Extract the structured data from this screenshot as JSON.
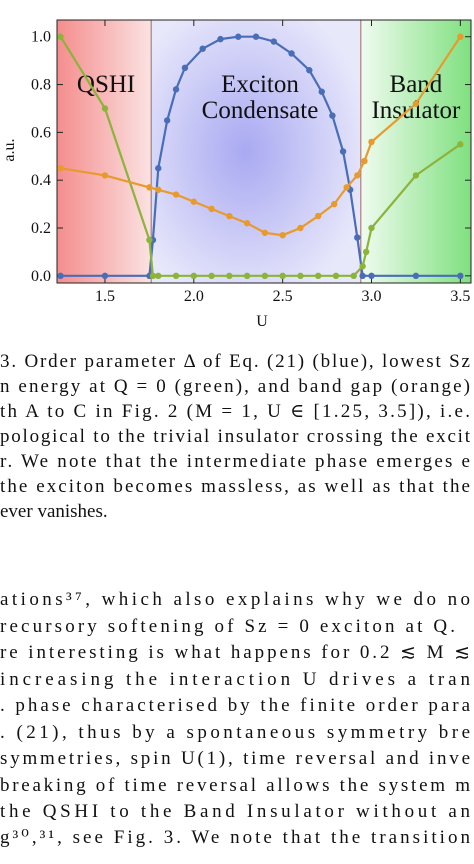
{
  "chart_data": {
    "type": "line",
    "x_label": "U",
    "y_label": "a.u.",
    "xlim": [
      1.23,
      3.56
    ],
    "ylim": [
      -0.03,
      1.07
    ],
    "xticks": [
      1.5,
      {
        "value": 2,
        "label": "2.0"
      },
      2.5,
      {
        "value": 3,
        "label": "3.0"
      },
      3.5
    ],
    "yticks": [
      {
        "value": 0,
        "label": "0.0"
      },
      0.2,
      0.4,
      0.6,
      0.8,
      {
        "value": 1,
        "label": "1.0"
      }
    ],
    "phase_boundaries": [
      1.76,
      2.94
    ],
    "regions": [
      {
        "label": [
          "QSHI"
        ]
      },
      {
        "label": [
          "Exciton",
          "Condensate"
        ]
      },
      {
        "label": [
          "Band",
          "Insulator"
        ]
      }
    ],
    "series": [
      {
        "color": "#4a6db8",
        "x": [
          1.25,
          1.5,
          1.75,
          1.77,
          1.8,
          1.85,
          1.9,
          1.95,
          2.05,
          2.15,
          2.25,
          2.35,
          2.45,
          2.55,
          2.65,
          2.72,
          2.78,
          2.84,
          2.88,
          2.92,
          2.95,
          3.0,
          3.25,
          3.5
        ],
        "values": [
          0,
          0,
          0,
          0.15,
          0.45,
          0.65,
          0.78,
          0.87,
          0.95,
          0.99,
          1.0,
          1.0,
          0.98,
          0.93,
          0.86,
          0.77,
          0.67,
          0.52,
          0.36,
          0.16,
          0,
          0,
          0,
          0
        ]
      },
      {
        "color": "#8cb33a",
        "x": [
          1.25,
          1.5,
          1.75,
          1.77,
          1.8,
          1.9,
          2.0,
          2.1,
          2.2,
          2.3,
          2.4,
          2.5,
          2.6,
          2.7,
          2.8,
          2.9,
          2.95,
          2.97,
          3.0,
          3.25,
          3.5
        ],
        "values": [
          1.0,
          0.7,
          0.15,
          0,
          0,
          0,
          0,
          0,
          0,
          0,
          0,
          0,
          0,
          0,
          0,
          0,
          0.04,
          0.1,
          0.2,
          0.42,
          0.55
        ]
      },
      {
        "color": "#e89a2c",
        "x": [
          1.25,
          1.5,
          1.75,
          1.8,
          1.9,
          2.0,
          2.1,
          2.2,
          2.3,
          2.4,
          2.5,
          2.6,
          2.7,
          2.79,
          2.86,
          2.92,
          2.96,
          3.0,
          3.25,
          3.5
        ],
        "values": [
          0.45,
          0.42,
          0.37,
          0.36,
          0.34,
          0.31,
          0.28,
          0.25,
          0.22,
          0.18,
          0.17,
          0.2,
          0.25,
          0.3,
          0.37,
          0.42,
          0.48,
          0.56,
          0.72,
          1.0
        ]
      }
    ]
  },
  "caption": {
    "lines": [
      "3. Order parameter Δ of Eq. (21) (blue), lowest Sz",
      "n energy at Q = 0 (green), and band gap (orange)",
      "th A to C in Fig. 2 (M = 1, U ∈ [1.25, 3.5]), i.e.",
      "pological to the trivial insulator crossing the excit",
      "r. We note that the intermediate phase emerges e",
      "the exciton becomes massless, as well as that the",
      "ever vanishes."
    ]
  },
  "body": {
    "lines": [
      "ations³⁷, which also explains why we do no",
      "recursory softening of Sz = 0 exciton at Q.",
      "re interesting is what happens for 0.2 ≲ M ≲",
      " increasing the interaction U drives a tran",
      ". phase characterised by the finite order para",
      ". (21), thus by a spontaneous symmetry bre",
      "symmetries, spin U(1), time reversal and inve",
      "breaking of time reversal allows the system m",
      "the QSHI to the Band Insulator without an",
      "g³⁰,³¹, see Fig. 3. We note that the transition"
    ]
  }
}
